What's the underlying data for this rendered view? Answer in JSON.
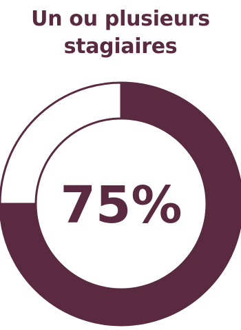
{
  "title": {
    "line1": "Un ou plusieurs",
    "line2": "stagiaires"
  },
  "colors": {
    "accent": "#592a40",
    "background": "#ffffff"
  },
  "chart_data": {
    "type": "pie",
    "variant": "donut",
    "title": "Un ou plusieurs stagiaires",
    "center_label": "75%",
    "slices": [
      {
        "value": 75,
        "color": "#592a40"
      },
      {
        "value": 25,
        "color": "#ffffff"
      }
    ]
  }
}
